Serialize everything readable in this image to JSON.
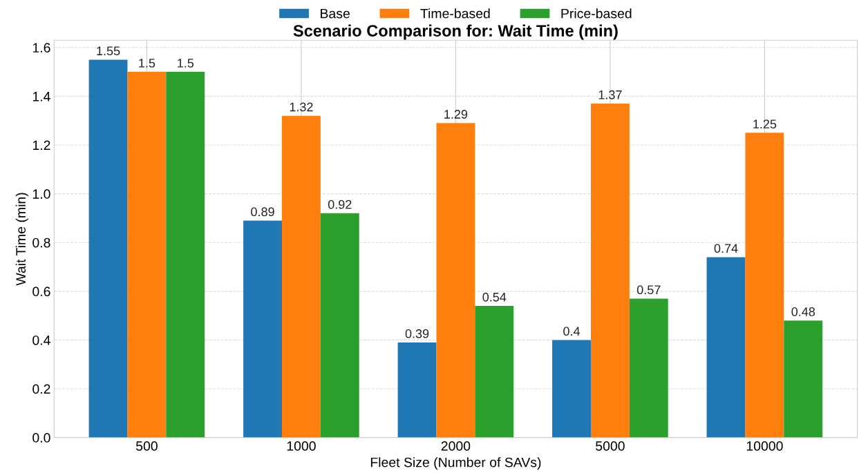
{
  "chart_data": {
    "type": "bar",
    "title": "Scenario Comparison for: Wait Time (min)",
    "xlabel": "Fleet Size (Number of SAVs)",
    "ylabel": "Wait Time (min)",
    "categories": [
      "500",
      "1000",
      "2000",
      "5000",
      "10000"
    ],
    "series": [
      {
        "name": "Base",
        "color": "#1f77b4",
        "values": [
          1.55,
          0.89,
          0.39,
          0.4,
          0.74
        ]
      },
      {
        "name": "Time-based",
        "color": "#ff7f0e",
        "values": [
          1.5,
          1.32,
          1.29,
          1.37,
          1.25
        ]
      },
      {
        "name": "Price-based",
        "color": "#2ca02c",
        "values": [
          1.5,
          0.92,
          0.54,
          0.57,
          0.48
        ]
      }
    ],
    "ylim": [
      0,
      1.63
    ],
    "yticks": [
      {
        "value": 0,
        "label": "0.0"
      },
      0.2,
      0.4,
      0.6,
      0.8,
      {
        "value": 1,
        "label": "1.0"
      },
      1.2,
      1.4,
      1.6
    ],
    "grid": true,
    "legend": "top",
    "data_labels": true
  }
}
